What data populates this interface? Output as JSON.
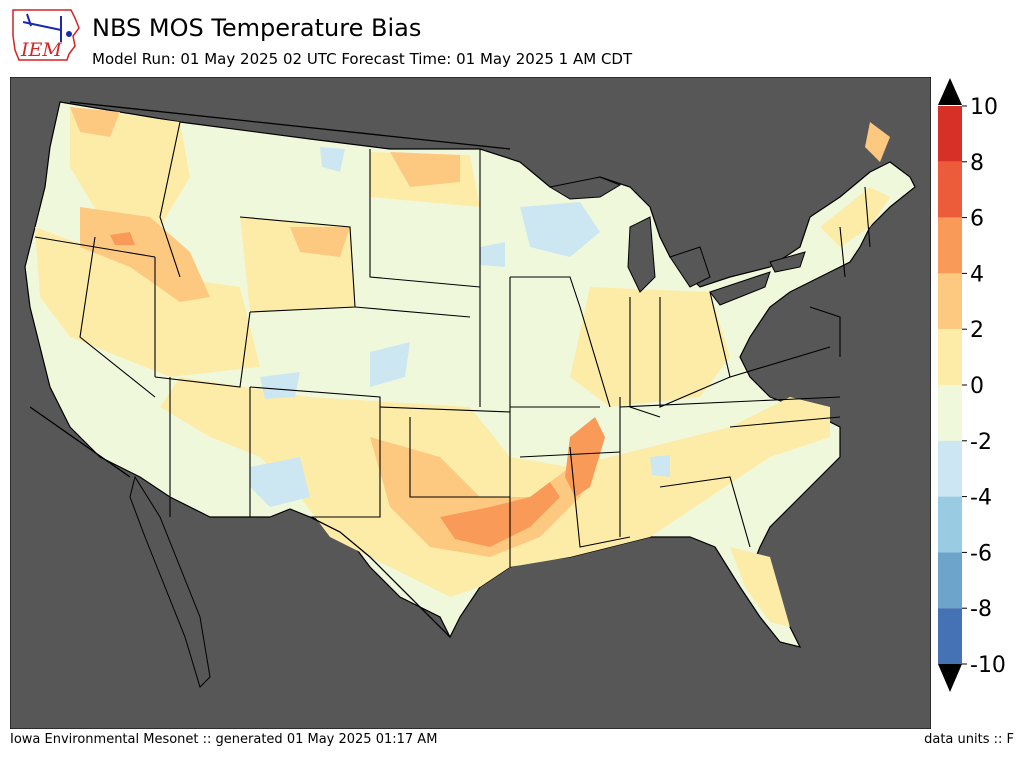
{
  "header": {
    "title": "NBS MOS Temperature Bias",
    "subtitle": "Model Run: 01 May 2025 02 UTC Forecast Time: 01 May 2025 1 AM CDT"
  },
  "logo": {
    "text": "IEM",
    "color": "#d42424",
    "accent": "#1a2ab0"
  },
  "footer": {
    "left": "Iowa Environmental Mesonet :: generated 01 May 2025 01:17 AM",
    "right": "data units :: F"
  },
  "map": {
    "background_color": "#575757",
    "region": "CONUS",
    "border_color": "#000000"
  },
  "colorbar": {
    "ticks": [
      "10",
      "8",
      "6",
      "4",
      "2",
      "0",
      "-2",
      "-4",
      "-6",
      "-8",
      "-10"
    ],
    "bins": [
      {
        "from": 8,
        "to": 10,
        "color": "#d73027"
      },
      {
        "from": 6,
        "to": 8,
        "color": "#ec5c3b"
      },
      {
        "from": 4,
        "to": 6,
        "color": "#fa9a58"
      },
      {
        "from": 2,
        "to": 4,
        "color": "#fdc980"
      },
      {
        "from": 0,
        "to": 2,
        "color": "#fdeca8"
      },
      {
        "from": -2,
        "to": 0,
        "color": "#f0f8dc"
      },
      {
        "from": -4,
        "to": -2,
        "color": "#cce7f1"
      },
      {
        "from": -6,
        "to": -4,
        "color": "#99cce3"
      },
      {
        "from": -8,
        "to": -6,
        "color": "#6da4cc"
      },
      {
        "from": -10,
        "to": -8,
        "color": "#4472b4"
      }
    ],
    "over_color": "#000000",
    "under_color": "#000000"
  }
}
